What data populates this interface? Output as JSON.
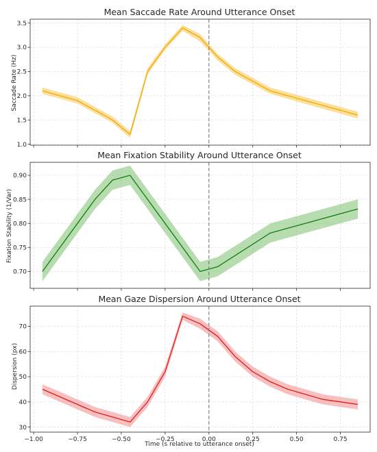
{
  "chart_data": [
    {
      "type": "line",
      "title": "Mean Saccade Rate Around Utterance Onset",
      "xlabel": "",
      "ylabel": "Saccade Rate (Hz)",
      "xlim": [
        -1.02,
        0.92
      ],
      "ylim": [
        0.98,
        3.58
      ],
      "xticks": [
        -1.0,
        -0.75,
        -0.5,
        -0.25,
        0.0,
        0.25,
        0.5,
        0.75
      ],
      "yticks": [
        1.0,
        1.5,
        2.0,
        2.5,
        3.0,
        3.5
      ],
      "ytick_labels": [
        "1.0",
        "1.5",
        "2.0",
        "2.5",
        "3.0",
        "3.5"
      ],
      "grid": true,
      "vline_x": 0.0,
      "color": "#f5a800",
      "band_color": "#f7c64c",
      "series": [
        {
          "x": [
            -0.95,
            -0.75,
            -0.55,
            -0.45,
            -0.35,
            -0.25,
            -0.15,
            -0.05,
            0.05,
            0.15,
            0.35,
            0.55,
            0.85
          ],
          "values": [
            2.1,
            1.9,
            1.5,
            1.2,
            2.5,
            3.0,
            3.4,
            3.2,
            2.8,
            2.5,
            2.1,
            1.9,
            1.6
          ],
          "lower": [
            2.04,
            1.84,
            1.44,
            1.13,
            2.44,
            2.95,
            3.34,
            3.12,
            2.73,
            2.43,
            2.04,
            1.83,
            1.53
          ],
          "upper": [
            2.17,
            1.97,
            1.57,
            1.27,
            2.57,
            3.06,
            3.46,
            3.27,
            2.86,
            2.57,
            2.17,
            1.97,
            1.67
          ]
        }
      ]
    },
    {
      "type": "line",
      "title": "Mean Fixation Stability Around Utterance Onset",
      "xlabel": "",
      "ylabel": "Fixation Stability (1/Var)",
      "xlim": [
        -1.02,
        0.92
      ],
      "ylim": [
        0.665,
        0.927
      ],
      "xticks": [
        -1.0,
        -0.75,
        -0.5,
        -0.25,
        0.0,
        0.25,
        0.5,
        0.75
      ],
      "yticks": [
        0.7,
        0.75,
        0.8,
        0.85,
        0.9
      ],
      "ytick_labels": [
        "0.70",
        "0.75",
        "0.80",
        "0.85",
        "0.90"
      ],
      "grid": true,
      "vline_x": 0.0,
      "color": "#137b13",
      "band_color": "#7bbf6e",
      "series": [
        {
          "x": [
            -0.95,
            -0.65,
            -0.55,
            -0.45,
            -0.05,
            0.05,
            0.35,
            0.85
          ],
          "values": [
            0.7,
            0.85,
            0.89,
            0.9,
            0.7,
            0.71,
            0.78,
            0.83
          ],
          "lower": [
            0.68,
            0.83,
            0.87,
            0.88,
            0.68,
            0.69,
            0.76,
            0.81
          ],
          "upper": [
            0.72,
            0.87,
            0.91,
            0.92,
            0.72,
            0.73,
            0.8,
            0.85
          ]
        }
      ]
    },
    {
      "type": "line",
      "title": "Mean Gaze Dispersion Around Utterance Onset",
      "xlabel": "Time (s relative to utterance onset)",
      "ylabel": "Dispersion (px)",
      "xlim": [
        -1.02,
        0.92
      ],
      "ylim": [
        28.0,
        78.0
      ],
      "xticks": [
        -1.0,
        -0.75,
        -0.5,
        -0.25,
        0.0,
        0.25,
        0.5,
        0.75
      ],
      "xtick_labels": [
        "−1.00",
        "−0.75",
        "−0.50",
        "−0.25",
        "0.00",
        "0.25",
        "0.50",
        "0.75"
      ],
      "yticks": [
        30,
        40,
        50,
        60,
        70
      ],
      "ytick_labels": [
        "30",
        "40",
        "50",
        "60",
        "70"
      ],
      "grid": true,
      "vline_x": 0.0,
      "color": "#e01b1b",
      "band_color": "#f08c8c",
      "series": [
        {
          "x": [
            -0.95,
            -0.85,
            -0.75,
            -0.65,
            -0.55,
            -0.45,
            -0.35,
            -0.25,
            -0.15,
            -0.05,
            0.05,
            0.15,
            0.25,
            0.35,
            0.45,
            0.55,
            0.65,
            0.75,
            0.85
          ],
          "values": [
            45,
            42,
            39,
            36,
            34,
            32,
            40,
            52,
            74,
            71,
            66,
            58,
            52,
            48,
            45,
            43,
            41,
            40,
            39
          ],
          "lower": [
            43,
            40,
            37,
            34,
            32,
            30,
            38,
            50,
            72.5,
            69,
            64,
            56,
            50,
            46,
            43,
            41,
            39,
            38,
            37
          ],
          "upper": [
            47,
            44,
            41,
            38,
            36,
            34,
            42,
            54,
            75.5,
            73,
            68,
            60,
            54,
            50,
            47,
            45,
            43,
            42,
            41
          ]
        }
      ]
    }
  ]
}
